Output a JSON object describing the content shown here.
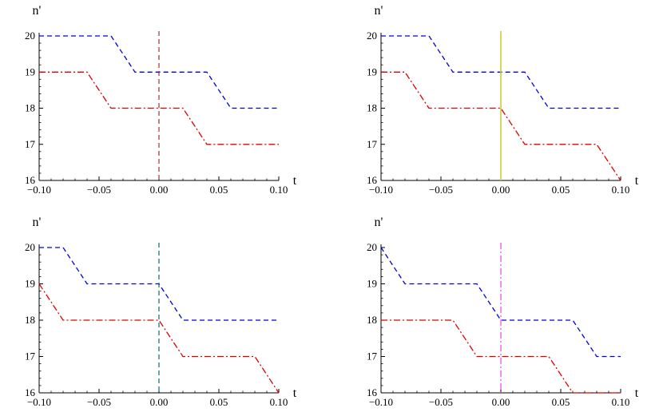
{
  "chart_data": [
    {
      "type": "line",
      "ylabel": "n'",
      "xlabel": "t",
      "xlim": [
        -0.1,
        0.1
      ],
      "ylim": [
        16,
        20
      ],
      "x_ticks": [
        -0.1,
        -0.05,
        0.0,
        0.05,
        0.1
      ],
      "x_tick_labels": [
        "−0.10",
        "−0.05",
        "0.00",
        "0.05",
        "0.10"
      ],
      "y_ticks": [
        16,
        17,
        18,
        19,
        20
      ],
      "y_tick_labels": [
        "16",
        "17",
        "18",
        "19",
        "20"
      ],
      "series": [
        {
          "style": "dashed",
          "color": "#0000dd",
          "x": [
            -0.1,
            -0.04,
            -0.02,
            0.04,
            0.06,
            0.1
          ],
          "y": [
            20,
            20,
            19,
            19,
            18,
            18
          ]
        },
        {
          "style": "dashdot",
          "color": "#dd0000",
          "x": [
            -0.1,
            -0.06,
            -0.04,
            0.02,
            0.04,
            0.1
          ],
          "y": [
            19,
            19,
            18,
            18,
            17,
            17
          ]
        }
      ],
      "marker_line": {
        "x": 0.0,
        "style": "dashed",
        "color": "#993333"
      }
    },
    {
      "type": "line",
      "ylabel": "n'",
      "xlabel": "t",
      "xlim": [
        -0.1,
        0.1
      ],
      "ylim": [
        16,
        20
      ],
      "x_ticks": [
        -0.1,
        -0.05,
        0.0,
        0.05,
        0.1
      ],
      "x_tick_labels": [
        "−0.10",
        "−0.05",
        "0.00",
        "0.05",
        "0.10"
      ],
      "y_ticks": [
        16,
        17,
        18,
        19,
        20
      ],
      "y_tick_labels": [
        "16",
        "17",
        "18",
        "19",
        "20"
      ],
      "series": [
        {
          "style": "dashed",
          "color": "#0000dd",
          "x": [
            -0.1,
            -0.06,
            -0.04,
            0.02,
            0.04,
            0.1
          ],
          "y": [
            20,
            20,
            19,
            19,
            18,
            18
          ]
        },
        {
          "style": "dashdot",
          "color": "#dd0000",
          "x": [
            -0.1,
            -0.08,
            -0.06,
            0.0,
            0.02,
            0.08,
            0.1
          ],
          "y": [
            19,
            19,
            18,
            18,
            17,
            17,
            16
          ]
        }
      ],
      "marker_line": {
        "x": 0.0,
        "style": "solid",
        "color": "#cccc33"
      }
    },
    {
      "type": "line",
      "ylabel": "n'",
      "xlabel": "t",
      "xlim": [
        -0.1,
        0.1
      ],
      "ylim": [
        16,
        20
      ],
      "x_ticks": [
        -0.1,
        -0.05,
        0.0,
        0.05,
        0.1
      ],
      "x_tick_labels": [
        "−0.10",
        "−0.05",
        "0.00",
        "0.05",
        "0.10"
      ],
      "y_ticks": [
        16,
        17,
        18,
        19,
        20
      ],
      "y_tick_labels": [
        "16",
        "17",
        "18",
        "19",
        "20"
      ],
      "series": [
        {
          "style": "dashed",
          "color": "#0000dd",
          "x": [
            -0.1,
            -0.08,
            -0.06,
            0.0,
            0.02,
            0.1
          ],
          "y": [
            20,
            20,
            19,
            19,
            18,
            18
          ]
        },
        {
          "style": "dashdot",
          "color": "#dd0000",
          "x": [
            -0.1,
            -0.08,
            0.0,
            0.02,
            0.08,
            0.1
          ],
          "y": [
            19,
            18,
            18,
            17,
            17,
            16
          ]
        }
      ],
      "marker_line": {
        "x": 0.0,
        "style": "dashed",
        "color": "#116677"
      }
    },
    {
      "type": "line",
      "ylabel": "n'",
      "xlabel": "t",
      "xlim": [
        -0.1,
        0.1
      ],
      "ylim": [
        16,
        20
      ],
      "x_ticks": [
        -0.1,
        -0.05,
        0.0,
        0.05,
        0.1
      ],
      "x_tick_labels": [
        "−0.10",
        "−0.05",
        "0.00",
        "0.05",
        "0.10"
      ],
      "y_ticks": [
        16,
        17,
        18,
        19,
        20
      ],
      "y_tick_labels": [
        "16",
        "17",
        "18",
        "19",
        "20"
      ],
      "series": [
        {
          "style": "dashed",
          "color": "#0000dd",
          "x": [
            -0.1,
            -0.08,
            -0.04,
            -0.02,
            0.0,
            0.06,
            0.08,
            0.1
          ],
          "y": [
            20,
            19,
            19,
            19,
            18,
            18,
            17,
            17
          ]
        },
        {
          "style": "dashdot",
          "color": "#dd0000",
          "x": [
            -0.1,
            -0.04,
            -0.02,
            0.04,
            0.06,
            0.1
          ],
          "y": [
            18,
            18,
            17,
            17,
            16,
            16
          ]
        }
      ],
      "marker_line": {
        "x": 0.0,
        "style": "dashdot",
        "color": "#ee44ee"
      }
    }
  ]
}
